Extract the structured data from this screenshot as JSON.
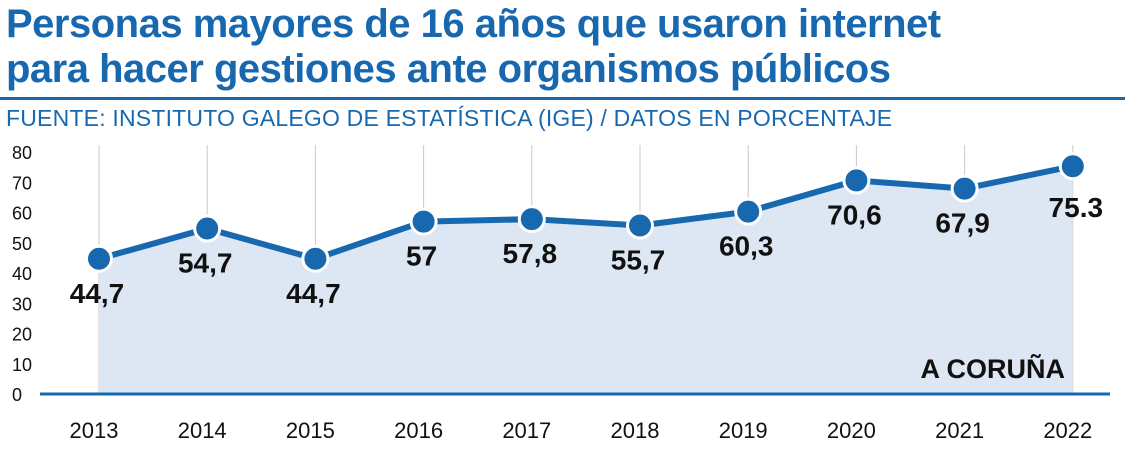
{
  "header": {
    "title_line1": "Personas mayores de 16 años que usaron internet",
    "title_line2": "para hacer gestiones ante organismos públicos",
    "source": "FUENTE: INSTITUTO GALEGO DE ESTATÍSTICA (IGE) / DATOS EN PORCENTAJE"
  },
  "chart_data": {
    "type": "line",
    "title": "Personas mayores de 16 años que usaron internet para hacer gestiones ante organismos públicos",
    "annotation": "A CORUÑA",
    "categories": [
      "2013",
      "2014",
      "2015",
      "2016",
      "2017",
      "2018",
      "2019",
      "2020",
      "2021",
      "2022"
    ],
    "values": [
      44.7,
      54.7,
      44.7,
      57,
      57.8,
      55.7,
      60.3,
      70.6,
      67.9,
      75.3
    ],
    "value_labels": [
      "44,7",
      "54,7",
      "44,7",
      "57",
      "57,8",
      "55,7",
      "60,3",
      "70,6",
      "67,9",
      "75.3"
    ],
    "yticks": [
      "0",
      "10",
      "20",
      "30",
      "40",
      "50",
      "60",
      "70",
      "80"
    ],
    "ylim": [
      0,
      80
    ],
    "xlabel": "",
    "ylabel": "",
    "colors": {
      "line": "#1868b0",
      "area": "#dde6f3",
      "grid": "#c9c9c9"
    }
  }
}
